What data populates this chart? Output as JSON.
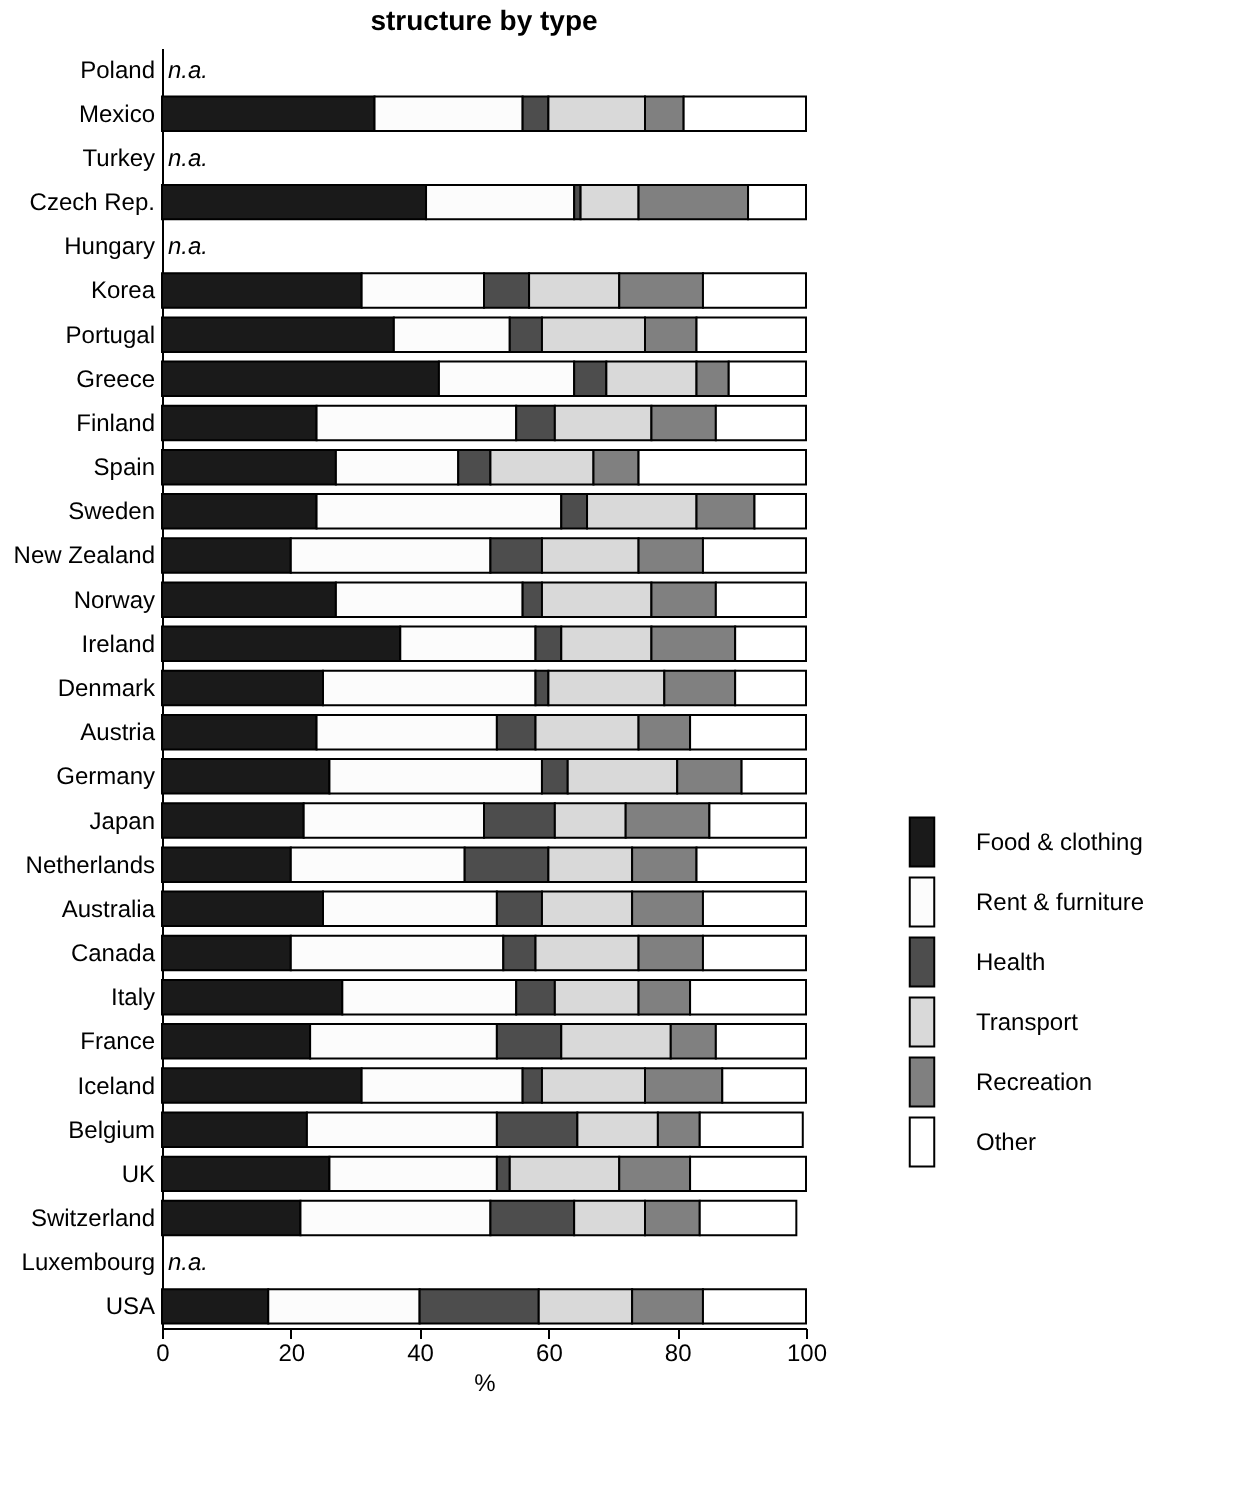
{
  "chart_data": {
    "type": "bar",
    "orientation": "horizontal",
    "stacked": true,
    "title": "structure by type",
    "xlabel": "%",
    "categories": [
      "Poland",
      "Mexico",
      "Turkey",
      "Czech Rep.",
      "Hungary",
      "Korea",
      "Portugal",
      "Greece",
      "Finland",
      "Spain",
      "Sweden",
      "New Zealand",
      "Norway",
      "Ireland",
      "Denmark",
      "Austria",
      "Germany",
      "Japan",
      "Netherlands",
      "Australia",
      "Canada",
      "Italy",
      "France",
      "Iceland",
      "Belgium",
      "UK",
      "Switzerland",
      "Luxembourg",
      "USA"
    ],
    "xlim": [
      0,
      100
    ],
    "xticks": [
      0,
      20,
      40,
      60,
      80,
      100
    ],
    "grid": false,
    "legend": "right",
    "series": [
      {
        "name": "Food & clothing",
        "color": "#1a1a1a",
        "values": [
          null,
          33,
          null,
          41,
          null,
          31,
          36,
          43,
          24,
          27,
          24,
          20,
          27,
          37,
          25,
          24,
          26,
          22,
          20,
          25,
          20,
          28,
          23,
          31,
          22.5,
          26,
          21.5,
          null,
          16.5
        ]
      },
      {
        "name": "Rent & furniture",
        "color": "#fcfcfc",
        "values": [
          null,
          23,
          null,
          23,
          null,
          19,
          18,
          21,
          31,
          19,
          38,
          31,
          29,
          21,
          33,
          28,
          33,
          28,
          27,
          27,
          33,
          27,
          29,
          25,
          29.5,
          26,
          29.5,
          null,
          23.5
        ]
      },
      {
        "name": "Health",
        "color": "#4d4d4d",
        "values": [
          null,
          4,
          null,
          1,
          null,
          7,
          5,
          5,
          6,
          5,
          4,
          8,
          3,
          4,
          2,
          6,
          4,
          11,
          13,
          7,
          5,
          6,
          10,
          3,
          12.5,
          2,
          13,
          null,
          18.5
        ]
      },
      {
        "name": "Transport",
        "color": "#d9d9d9",
        "values": [
          null,
          15,
          null,
          9,
          null,
          14,
          16,
          14,
          15,
          16,
          17,
          15,
          17,
          14,
          18,
          16,
          17,
          11,
          13,
          14,
          16,
          13,
          17,
          16,
          12.5,
          17,
          11,
          null,
          14.5
        ]
      },
      {
        "name": "Recreation",
        "color": "#808080",
        "values": [
          null,
          6,
          null,
          17,
          null,
          13,
          8,
          5,
          10,
          7,
          9,
          10,
          10,
          13,
          11,
          8,
          10,
          13,
          10,
          11,
          10,
          8,
          7,
          12,
          6.5,
          11,
          8.5,
          null,
          11
        ]
      },
      {
        "name": "Other",
        "color": "#ffffff",
        "values": [
          null,
          19,
          null,
          9,
          null,
          16,
          17,
          12,
          14,
          26,
          8,
          16,
          14,
          11,
          11,
          18,
          10,
          15,
          17,
          16,
          16,
          18,
          14,
          13,
          16,
          18,
          15,
          null,
          16
        ]
      }
    ],
    "annotations": [
      {
        "text": "n.a.",
        "y": "Poland"
      },
      {
        "text": "n.a.",
        "y": "Turkey"
      },
      {
        "text": "n.a.",
        "y": "Hungary"
      },
      {
        "text": "n.a.",
        "y": "Luxembourg"
      }
    ]
  }
}
